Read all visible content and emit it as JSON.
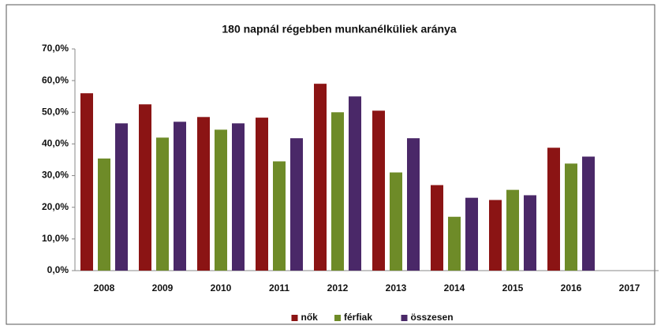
{
  "chart_data": {
    "type": "bar",
    "title": "180 napnál régebben munkanélküliek aránya",
    "categories": [
      "2008",
      "2009",
      "2010",
      "2011",
      "2012",
      "2013",
      "2014",
      "2015",
      "2016",
      "2017"
    ],
    "series": [
      {
        "name": "nők",
        "color": "#8b1414",
        "values": [
          56,
          52.5,
          48.5,
          48.3,
          59,
          50.5,
          27,
          22.3,
          38.8,
          null
        ]
      },
      {
        "name": "férfiak",
        "color": "#6e8b28",
        "values": [
          35.4,
          42,
          44.5,
          34.5,
          50,
          31,
          17,
          25.5,
          33.8,
          null
        ]
      },
      {
        "name": "összesen",
        "color": "#4a2868",
        "values": [
          46.5,
          47,
          46.5,
          41.8,
          55,
          41.8,
          23,
          23.8,
          36,
          null
        ]
      }
    ],
    "ylim": [
      0,
      70
    ],
    "yticks": [
      {
        "value": 0,
        "label": "0,0%"
      },
      {
        "value": 10,
        "label": "10,0%"
      },
      {
        "value": 20,
        "label": "20,0%"
      },
      {
        "value": 30,
        "label": "30,0%"
      },
      {
        "value": 40,
        "label": "40,0%"
      },
      {
        "value": 50,
        "label": "50,0%"
      },
      {
        "value": 60,
        "label": "60,0%"
      },
      {
        "value": 70,
        "label": "70,0%"
      }
    ],
    "grid": false,
    "legend": "bottom"
  }
}
